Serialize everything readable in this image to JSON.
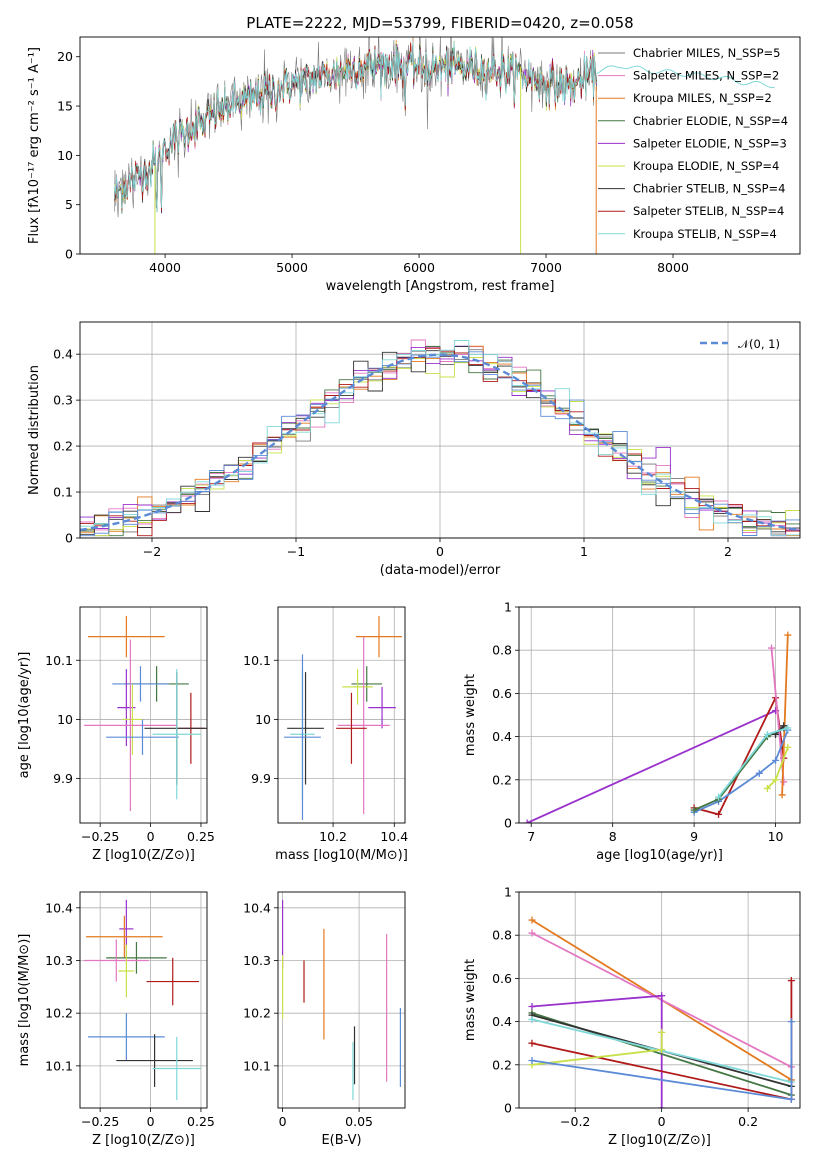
{
  "chart_data": [
    {
      "id": "spectrum",
      "type": "line",
      "title": "PLATE=2222, MJD=53799, FIBERID=0420, z=0.058",
      "xlabel": "wavelength [Angstrom, rest frame]",
      "ylabel": "Flux [fλ10⁻¹⁷ erg cm⁻² s⁻¹ A⁻¹]",
      "xlim": [
        3330,
        9000
      ],
      "ylim": [
        0,
        22
      ],
      "xticks": [
        4000,
        5000,
        6000,
        7000,
        8000
      ],
      "yticks": [
        0,
        5,
        10,
        15,
        20
      ],
      "grid": false,
      "legend_position": "top-right",
      "continuum": [
        [
          3600,
          6.0
        ],
        [
          3700,
          7.0
        ],
        [
          3800,
          8.0
        ],
        [
          3900,
          8.8
        ],
        [
          4000,
          10.8
        ],
        [
          4100,
          11.8
        ],
        [
          4200,
          12.8
        ],
        [
          4300,
          13.2
        ],
        [
          4400,
          14.3
        ],
        [
          4500,
          15.0
        ],
        [
          4700,
          15.8
        ],
        [
          4900,
          16.8
        ],
        [
          5100,
          17.5
        ],
        [
          5300,
          18.3
        ],
        [
          5500,
          19.0
        ],
        [
          5800,
          19.2
        ],
        [
          6000,
          19.0
        ],
        [
          6200,
          18.8
        ],
        [
          6400,
          18.9
        ],
        [
          6600,
          18.6
        ],
        [
          6800,
          18.2
        ],
        [
          7000,
          17.3
        ],
        [
          7200,
          17.0
        ],
        [
          7400,
          18.5
        ],
        [
          7600,
          19.1
        ],
        [
          7800,
          18.6
        ],
        [
          8000,
          18.4
        ],
        [
          8200,
          18.1
        ],
        [
          8400,
          17.8
        ],
        [
          8600,
          17.3
        ],
        [
          8800,
          17.1
        ]
      ],
      "series": [
        {
          "name": "Chabrier MILES, N_SSP=5",
          "color": "#7a7a7a"
        },
        {
          "name": "Salpeter MILES, N_SSP=2",
          "color": "#e377c2"
        },
        {
          "name": "Kroupa MILES, N_SSP=2",
          "color": "#e37a1f"
        },
        {
          "name": "Chabrier ELODIE, N_SSP=4",
          "color": "#447744"
        },
        {
          "name": "Salpeter ELODIE, N_SSP=3",
          "color": "#9932cc"
        },
        {
          "name": "Kroupa ELODIE, N_SSP=4",
          "color": "#c8e04a"
        },
        {
          "name": "Chabrier STELIB, N_SSP=4",
          "color": "#333333"
        },
        {
          "name": "Salpeter STELIB, N_SSP=4",
          "color": "#b01a1a"
        },
        {
          "name": "Kroupa STELIB, N_SSP=4",
          "color": "#7fd8d8"
        }
      ]
    },
    {
      "id": "residuals",
      "type": "histogram",
      "xlabel": "(data-model)/error",
      "ylabel": "Normed distribution",
      "xlim": [
        -2.5,
        2.5
      ],
      "ylim": [
        0,
        0.47
      ],
      "xticks": [
        -2,
        -1,
        0,
        1,
        2
      ],
      "yticks": [
        0.0,
        0.1,
        0.2,
        0.3,
        0.4
      ],
      "grid": true,
      "legend_position": "top-right",
      "legend": [
        "𝒩(0, 1)"
      ],
      "bin_width": 0.1,
      "normal_curve_color": "#5b8bd6",
      "series": [
        {
          "color": "#7a7a7a"
        },
        {
          "color": "#e377c2"
        },
        {
          "color": "#e37a1f"
        },
        {
          "color": "#447744"
        },
        {
          "color": "#9932cc"
        },
        {
          "color": "#c8e04a"
        },
        {
          "color": "#333333"
        },
        {
          "color": "#b01a1a"
        },
        {
          "color": "#7fd8d8"
        },
        {
          "color": "#5b8bd6"
        }
      ]
    },
    {
      "id": "age_vs_Z",
      "type": "scatter",
      "xlabel": "Z [log10(Z/Z⊙)]",
      "ylabel": "age [log10(age/yr)]",
      "xlim": [
        -0.35,
        0.28
      ],
      "ylim": [
        9.825,
        10.19
      ],
      "xticks": [
        -0.25,
        0.0,
        0.25
      ],
      "yticks": [
        9.9,
        10.0,
        10.1
      ],
      "grid": true,
      "points": [
        {
          "x": -0.12,
          "y": 10.14,
          "xerr": 0.19,
          "yerr": 0.035,
          "color": "#e37a1f"
        },
        {
          "x": 0.03,
          "y": 10.06,
          "xerr": 0.16,
          "yerr": 0.03,
          "color": "#447744"
        },
        {
          "x": -0.05,
          "y": 10.06,
          "xerr": 0.14,
          "yerr": 0.03,
          "color": "#5b8bd6"
        },
        {
          "x": -0.12,
          "y": 10.02,
          "xerr": 0.045,
          "yerr": 0.065,
          "color": "#9932cc"
        },
        {
          "x": -0.09,
          "y": 10.0,
          "xerr": 0.05,
          "yerr": 0.06,
          "color": "#c8e04a"
        },
        {
          "x": -0.1,
          "y": 9.99,
          "xerr": 0.23,
          "yerr": 0.145,
          "color": "#e377c2"
        },
        {
          "x": 0.2,
          "y": 9.985,
          "xerr": 0.07,
          "yerr": 0.06,
          "color": "#b01a1a"
        },
        {
          "x": 0.13,
          "y": 9.985,
          "xerr": 0.16,
          "yerr": 0.095,
          "color": "#333333"
        },
        {
          "x": -0.04,
          "y": 9.97,
          "xerr": 0.18,
          "yerr": 0.03,
          "color": "#5b8bd6"
        },
        {
          "x": 0.13,
          "y": 9.975,
          "xerr": 0.12,
          "yerr": 0.11,
          "color": "#7fd8d8"
        }
      ]
    },
    {
      "id": "age_vs_mass",
      "type": "scatter",
      "xlabel": "mass [log10(M/M⊙)]",
      "ylabel": "",
      "xlim": [
        10.02,
        10.435
      ],
      "ylim": [
        9.825,
        10.19
      ],
      "xticks": [
        10.2,
        10.4
      ],
      "yticks": [
        9.9,
        10.0,
        10.1
      ],
      "grid": true,
      "points": [
        {
          "x": 10.35,
          "y": 10.14,
          "xerr": 0.075,
          "yerr": 0.035,
          "color": "#e37a1f"
        },
        {
          "x": 10.31,
          "y": 10.06,
          "xerr": 0.05,
          "yerr": 0.03,
          "color": "#447744"
        },
        {
          "x": 10.28,
          "y": 10.055,
          "xerr": 0.05,
          "yerr": 0.03,
          "color": "#c8e04a"
        },
        {
          "x": 10.36,
          "y": 10.02,
          "xerr": 0.045,
          "yerr": 0.035,
          "color": "#9932cc"
        },
        {
          "x": 10.3,
          "y": 9.99,
          "xerr": 0.085,
          "yerr": 0.15,
          "color": "#e377c2"
        },
        {
          "x": 10.26,
          "y": 9.985,
          "xerr": 0.05,
          "yerr": 0.06,
          "color": "#b01a1a"
        },
        {
          "x": 10.11,
          "y": 9.985,
          "xerr": 0.06,
          "yerr": 0.095,
          "color": "#333333"
        },
        {
          "x": 10.1,
          "y": 9.975,
          "xerr": 0.04,
          "yerr": 0.11,
          "color": "#7fd8d8"
        },
        {
          "x": 10.1,
          "y": 9.97,
          "xerr": 0.06,
          "yerr": 0.14,
          "color": "#5b8bd6"
        }
      ]
    },
    {
      "id": "weight_vs_age",
      "type": "line",
      "xlabel": "age [log10(age/yr)]",
      "ylabel": "mass weight",
      "xlim": [
        6.85,
        10.3
      ],
      "ylim": [
        0.0,
        1.0
      ],
      "xticks": [
        7,
        8,
        9,
        10
      ],
      "yticks": [
        0.0,
        0.2,
        0.4,
        0.6,
        0.8,
        1.0
      ],
      "grid": true,
      "series": [
        {
          "color": "#9932cc",
          "points": [
            [
              6.95,
              0.0
            ],
            [
              10.0,
              0.52
            ]
          ]
        },
        {
          "color": "#b01a1a",
          "points": [
            [
              9.0,
              0.07
            ],
            [
              9.3,
              0.04
            ],
            [
              10.0,
              0.58
            ],
            [
              10.1,
              0.3
            ]
          ]
        },
        {
          "color": "#e377c2",
          "points": [
            [
              9.95,
              0.81
            ],
            [
              10.1,
              0.19
            ]
          ]
        },
        {
          "color": "#e37a1f",
          "points": [
            [
              10.08,
              0.13
            ],
            [
              10.15,
              0.87
            ]
          ]
        },
        {
          "color": "#5b8bd6",
          "points": [
            [
              9.0,
              0.05
            ],
            [
              9.3,
              0.1
            ],
            [
              9.8,
              0.23
            ],
            [
              10.0,
              0.29
            ],
            [
              10.15,
              0.43
            ]
          ]
        },
        {
          "color": "#c8e04a",
          "points": [
            [
              9.9,
              0.16
            ],
            [
              10.0,
              0.2
            ],
            [
              10.15,
              0.35
            ]
          ]
        },
        {
          "color": "#447744",
          "points": [
            [
              9.0,
              0.06
            ],
            [
              9.3,
              0.11
            ],
            [
              9.9,
              0.4
            ],
            [
              10.1,
              0.44
            ]
          ]
        },
        {
          "color": "#333333",
          "points": [
            [
              10.0,
              0.41
            ],
            [
              10.1,
              0.45
            ]
          ]
        },
        {
          "color": "#7fd8d8",
          "points": [
            [
              9.3,
              0.12
            ],
            [
              9.9,
              0.41
            ],
            [
              10.15,
              0.44
            ]
          ]
        }
      ]
    },
    {
      "id": "mass_vs_Z",
      "type": "scatter",
      "xlabel": "Z [log10(Z/Z⊙)]",
      "ylabel": "mass [log10(M/M⊙)]",
      "xlim": [
        -0.35,
        0.28
      ],
      "ylim": [
        10.02,
        10.43
      ],
      "xticks": [
        -0.25,
        0.0,
        0.25
      ],
      "yticks": [
        10.1,
        10.2,
        10.3,
        10.4
      ],
      "grid": true,
      "points": [
        {
          "x": -0.12,
          "y": 10.36,
          "xerr": 0.035,
          "yerr": 0.055,
          "color": "#9932cc"
        },
        {
          "x": -0.13,
          "y": 10.345,
          "xerr": 0.19,
          "yerr": 0.04,
          "color": "#e37a1f"
        },
        {
          "x": -0.07,
          "y": 10.305,
          "xerr": 0.15,
          "yerr": 0.03,
          "color": "#447744"
        },
        {
          "x": -0.17,
          "y": 10.3,
          "xerr": 0.16,
          "yerr": 0.04,
          "color": "#e377c2"
        },
        {
          "x": -0.12,
          "y": 10.28,
          "xerr": 0.04,
          "yerr": 0.05,
          "color": "#c8e04a"
        },
        {
          "x": 0.11,
          "y": 10.26,
          "xerr": 0.13,
          "yerr": 0.045,
          "color": "#b01a1a"
        },
        {
          "x": -0.12,
          "y": 10.155,
          "xerr": 0.19,
          "yerr": 0.045,
          "color": "#5b8bd6"
        },
        {
          "x": 0.02,
          "y": 10.11,
          "xerr": 0.19,
          "yerr": 0.05,
          "color": "#333333"
        },
        {
          "x": 0.13,
          "y": 10.095,
          "xerr": 0.12,
          "yerr": 0.06,
          "color": "#7fd8d8"
        }
      ]
    },
    {
      "id": "mass_vs_ebv",
      "type": "scatter",
      "xlabel": "E(B-V)",
      "ylabel": "",
      "xlim": [
        -0.003,
        0.08
      ],
      "ylim": [
        10.02,
        10.43
      ],
      "xticks": [
        0.0,
        0.05
      ],
      "yticks": [
        10.1,
        10.2,
        10.3,
        10.4
      ],
      "grid": true,
      "points": [
        {
          "x": 0.0,
          "y": 10.35,
          "xerr": 0,
          "yerr": 0.065,
          "color": "#9932cc"
        },
        {
          "x": 0.0,
          "y": 10.25,
          "xerr": 0,
          "yerr": 0.06,
          "color": "#c8e04a"
        },
        {
          "x": 0.014,
          "y": 10.26,
          "xerr": 0,
          "yerr": 0.04,
          "color": "#b01a1a"
        },
        {
          "x": 0.027,
          "y": 10.255,
          "xerr": 0,
          "yerr": 0.105,
          "color": "#e37a1f"
        },
        {
          "x": 0.047,
          "y": 10.12,
          "xerr": 0,
          "yerr": 0.055,
          "color": "#333333"
        },
        {
          "x": 0.046,
          "y": 10.09,
          "xerr": 0,
          "yerr": 0.055,
          "color": "#7fd8d8"
        },
        {
          "x": 0.068,
          "y": 10.21,
          "xerr": 0,
          "yerr": 0.14,
          "color": "#e377c2"
        },
        {
          "x": 0.077,
          "y": 10.135,
          "xerr": 0,
          "yerr": 0.075,
          "color": "#5b8bd6"
        }
      ]
    },
    {
      "id": "weight_vs_Z",
      "type": "line",
      "xlabel": "Z [log10(Z/Z⊙)]",
      "ylabel": "mass weight",
      "xlim": [
        -0.33,
        0.32
      ],
      "ylim": [
        0.0,
        1.0
      ],
      "xticks": [
        -0.2,
        0.0,
        0.2
      ],
      "yticks": [
        0.0,
        0.2,
        0.4,
        0.6,
        0.8,
        1.0
      ],
      "grid": true,
      "series": [
        {
          "color": "#e37a1f",
          "points": [
            [
              -0.3,
              0.87
            ],
            [
              0.3,
              0.13
            ]
          ]
        },
        {
          "color": "#e377c2",
          "points": [
            [
              -0.3,
              0.81
            ],
            [
              0.3,
              0.19
            ]
          ]
        },
        {
          "color": "#9932cc",
          "points": [
            [
              -0.3,
              0.47
            ],
            [
              0.0,
              0.52
            ],
            [
              0.0,
              0.0
            ]
          ]
        },
        {
          "color": "#447744",
          "points": [
            [
              -0.3,
              0.44
            ],
            [
              0.3,
              0.06
            ]
          ]
        },
        {
          "color": "#333333",
          "points": [
            [
              -0.3,
              0.43
            ],
            [
              0.3,
              0.1
            ]
          ]
        },
        {
          "color": "#7fd8d8",
          "points": [
            [
              -0.3,
              0.41
            ],
            [
              0.3,
              0.12
            ]
          ]
        },
        {
          "color": "#b01a1a",
          "points": [
            [
              -0.3,
              0.3
            ],
            [
              0.3,
              0.04
            ],
            [
              0.3,
              0.59
            ]
          ]
        },
        {
          "color": "#c8e04a",
          "points": [
            [
              -0.3,
              0.2
            ],
            [
              0.0,
              0.27
            ],
            [
              0.0,
              0.35
            ]
          ]
        },
        {
          "color": "#5b8bd6",
          "points": [
            [
              -0.3,
              0.22
            ],
            [
              0.3,
              0.04
            ],
            [
              0.3,
              0.4
            ]
          ]
        }
      ]
    }
  ]
}
